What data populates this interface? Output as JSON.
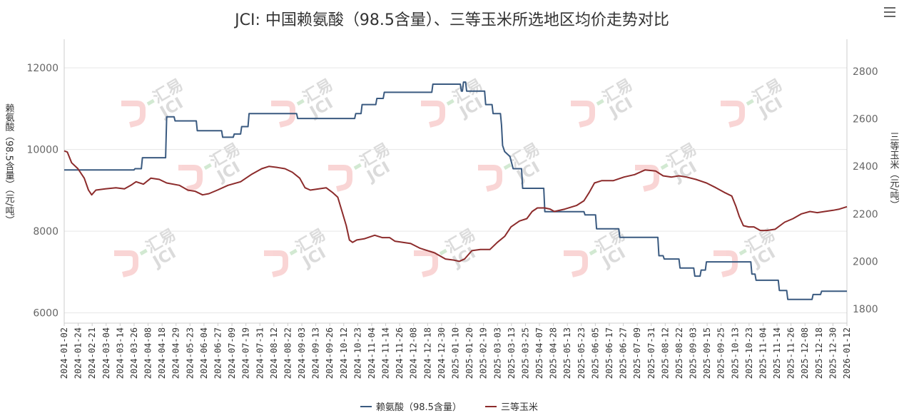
{
  "page": {
    "title": "JCI: 中国赖氨酸（98.5含量）、三等玉米所选地区均价走势对比",
    "watermark_text": "汇易",
    "watermark_text2": "JCI"
  },
  "chart_data": {
    "type": "line",
    "title": "JCI: 中国赖氨酸（98.5含量）、三等玉米所选地区均价走势对比",
    "ylabel_left": "赖氨酸（98.5含量）（元/吨）",
    "ylabel_right": "三等玉米（元/吨）",
    "ylim_left": [
      5750,
      12700
    ],
    "ylim_right": [
      1740,
      2935
    ],
    "yticks_left": [
      6000,
      8000,
      10000,
      12000
    ],
    "yticks_right": [
      1800,
      2000,
      2200,
      2400,
      2600,
      2800
    ],
    "xlim": [
      "2024-01-02",
      "2026-01-12"
    ],
    "grid": true,
    "legend_position": "bottom-center",
    "x_tick_labels": [
      "2024-01-02",
      "2024-01-24",
      "2024-02-21",
      "2024-03-04",
      "2024-03-14",
      "2024-03-26",
      "2024-04-08",
      "2024-04-18",
      "2024-04-29",
      "2024-05-23",
      "2024-06-04",
      "2024-06-27",
      "2024-07-09",
      "2024-07-19",
      "2024-07-31",
      "2024-08-12",
      "2024-08-22",
      "2024-09-03",
      "2024-09-13",
      "2024-09-26",
      "2024-10-12",
      "2024-10-23",
      "2024-11-04",
      "2024-11-14",
      "2024-11-26",
      "2024-12-08",
      "2024-12-18",
      "2024-12-30",
      "2025-01-10",
      "2025-01-20",
      "2025-02-19",
      "2025-03-03",
      "2025-03-13",
      "2025-03-25",
      "2025-04-07",
      "2025-04-28",
      "2025-05-13",
      "2025-05-23",
      "2025-06-05",
      "2025-06-17",
      "2025-06-27",
      "2025-07-09",
      "2025-07-31",
      "2025-08-12",
      "2025-08-22",
      "2025-09-03",
      "2025-09-15",
      "2025-09-25",
      "2025-10-13",
      "2025-10-23",
      "2025-11-04",
      "2025-11-14",
      "2025-11-26",
      "2025-12-08",
      "2025-12-18",
      "2025-12-30",
      "2026-01-12"
    ],
    "series": [
      {
        "name": "赖氨酸（98.5含量）",
        "axis": "left",
        "color": "#3a5a80",
        "step": true,
        "points": [
          [
            "2024-01-02",
            9500
          ],
          [
            "2024-03-08",
            9500
          ],
          [
            "2024-03-09",
            9530
          ],
          [
            "2024-03-15",
            9530
          ],
          [
            "2024-03-16",
            9800
          ],
          [
            "2024-04-07",
            9800
          ],
          [
            "2024-04-08",
            10800
          ],
          [
            "2024-04-15",
            10800
          ],
          [
            "2024-04-16",
            10700
          ],
          [
            "2024-05-06",
            10700
          ],
          [
            "2024-05-07",
            10460
          ],
          [
            "2024-05-30",
            10460
          ],
          [
            "2024-05-31",
            10300
          ],
          [
            "2024-06-10",
            10300
          ],
          [
            "2024-06-11",
            10380
          ],
          [
            "2024-06-17",
            10380
          ],
          [
            "2024-06-18",
            10560
          ],
          [
            "2024-06-24",
            10560
          ],
          [
            "2024-06-25",
            10880
          ],
          [
            "2024-08-09",
            10880
          ],
          [
            "2024-08-10",
            10760
          ],
          [
            "2024-10-03",
            10760
          ],
          [
            "2024-10-04",
            10880
          ],
          [
            "2024-10-09",
            10880
          ],
          [
            "2024-10-10",
            11100
          ],
          [
            "2024-10-23",
            11100
          ],
          [
            "2024-10-24",
            11250
          ],
          [
            "2024-10-30",
            11250
          ],
          [
            "2024-10-31",
            11400
          ],
          [
            "2024-12-15",
            11400
          ],
          [
            "2024-12-16",
            11600
          ],
          [
            "2025-01-11",
            11600
          ],
          [
            "2025-01-12",
            11430
          ],
          [
            "2025-01-13",
            11430
          ],
          [
            "2025-01-14",
            11650
          ],
          [
            "2025-01-16",
            11650
          ],
          [
            "2025-01-17",
            11430
          ],
          [
            "2025-02-03",
            11430
          ],
          [
            "2025-02-04",
            11100
          ],
          [
            "2025-02-10",
            11100
          ],
          [
            "2025-02-11",
            10880
          ],
          [
            "2025-02-18",
            10880
          ],
          [
            "2025-02-19",
            10600
          ],
          [
            "2025-02-20",
            10100
          ],
          [
            "2025-02-22",
            9950
          ],
          [
            "2025-02-27",
            9830
          ],
          [
            "2025-03-02",
            9530
          ],
          [
            "2025-03-10",
            9530
          ],
          [
            "2025-03-11",
            9050
          ],
          [
            "2025-03-31",
            9050
          ],
          [
            "2025-04-01",
            8480
          ],
          [
            "2025-05-08",
            8480
          ],
          [
            "2025-05-09",
            8400
          ],
          [
            "2025-05-19",
            8400
          ],
          [
            "2025-05-20",
            8060
          ],
          [
            "2025-06-10",
            8060
          ],
          [
            "2025-06-11",
            7850
          ],
          [
            "2025-07-17",
            7850
          ],
          [
            "2025-07-18",
            7400
          ],
          [
            "2025-07-22",
            7400
          ],
          [
            "2025-07-23",
            7320
          ],
          [
            "2025-08-06",
            7320
          ],
          [
            "2025-08-07",
            7100
          ],
          [
            "2025-08-20",
            7100
          ],
          [
            "2025-08-21",
            6900
          ],
          [
            "2025-08-26",
            6900
          ],
          [
            "2025-08-27",
            7050
          ],
          [
            "2025-08-31",
            7050
          ],
          [
            "2025-09-01",
            7250
          ],
          [
            "2025-10-13",
            7250
          ],
          [
            "2025-10-14",
            6950
          ],
          [
            "2025-10-17",
            6950
          ],
          [
            "2025-10-18",
            6800
          ],
          [
            "2025-11-08",
            6800
          ],
          [
            "2025-11-09",
            6550
          ],
          [
            "2025-11-16",
            6550
          ],
          [
            "2025-11-17",
            6330
          ],
          [
            "2025-12-10",
            6330
          ],
          [
            "2025-12-11",
            6450
          ],
          [
            "2025-12-18",
            6450
          ],
          [
            "2025-12-19",
            6530
          ],
          [
            "2026-01-12",
            6530
          ]
        ]
      },
      {
        "name": "三等玉米",
        "axis": "right",
        "color": "#8c2b2b",
        "step": false,
        "points": [
          [
            "2024-01-02",
            2465
          ],
          [
            "2024-01-05",
            2460
          ],
          [
            "2024-01-09",
            2415
          ],
          [
            "2024-01-15",
            2390
          ],
          [
            "2024-01-21",
            2350
          ],
          [
            "2024-01-25",
            2300
          ],
          [
            "2024-01-28",
            2280
          ],
          [
            "2024-02-01",
            2300
          ],
          [
            "2024-02-10",
            2305
          ],
          [
            "2024-02-20",
            2310
          ],
          [
            "2024-02-28",
            2305
          ],
          [
            "2024-03-05",
            2320
          ],
          [
            "2024-03-10",
            2335
          ],
          [
            "2024-03-17",
            2325
          ],
          [
            "2024-03-24",
            2350
          ],
          [
            "2024-04-01",
            2345
          ],
          [
            "2024-04-08",
            2330
          ],
          [
            "2024-04-20",
            2320
          ],
          [
            "2024-04-28",
            2300
          ],
          [
            "2024-05-05",
            2295
          ],
          [
            "2024-05-12",
            2280
          ],
          [
            "2024-05-18",
            2285
          ],
          [
            "2024-05-26",
            2300
          ],
          [
            "2024-06-05",
            2320
          ],
          [
            "2024-06-17",
            2335
          ],
          [
            "2024-06-27",
            2365
          ],
          [
            "2024-07-07",
            2390
          ],
          [
            "2024-07-14",
            2400
          ],
          [
            "2024-07-22",
            2395
          ],
          [
            "2024-07-29",
            2390
          ],
          [
            "2024-08-05",
            2375
          ],
          [
            "2024-08-12",
            2350
          ],
          [
            "2024-08-17",
            2310
          ],
          [
            "2024-08-22",
            2300
          ],
          [
            "2024-08-30",
            2305
          ],
          [
            "2024-09-06",
            2310
          ],
          [
            "2024-09-12",
            2290
          ],
          [
            "2024-09-17",
            2270
          ],
          [
            "2024-09-21",
            2210
          ],
          [
            "2024-09-25",
            2150
          ],
          [
            "2024-09-28",
            2090
          ],
          [
            "2024-10-01",
            2080
          ],
          [
            "2024-10-05",
            2090
          ],
          [
            "2024-10-12",
            2095
          ],
          [
            "2024-10-22",
            2110
          ],
          [
            "2024-10-29",
            2100
          ],
          [
            "2024-11-05",
            2100
          ],
          [
            "2024-11-10",
            2085
          ],
          [
            "2024-11-25",
            2075
          ],
          [
            "2024-12-04",
            2055
          ],
          [
            "2024-12-18",
            2035
          ],
          [
            "2024-12-28",
            2010
          ],
          [
            "2025-01-05",
            2005
          ],
          [
            "2025-01-10",
            2000
          ],
          [
            "2025-01-15",
            2010
          ],
          [
            "2025-01-22",
            2045
          ],
          [
            "2025-01-30",
            2050
          ],
          [
            "2025-02-08",
            2050
          ],
          [
            "2025-02-15",
            2080
          ],
          [
            "2025-02-22",
            2105
          ],
          [
            "2025-02-28",
            2145
          ],
          [
            "2025-03-08",
            2170
          ],
          [
            "2025-03-15",
            2180
          ],
          [
            "2025-03-20",
            2210
          ],
          [
            "2025-03-25",
            2225
          ],
          [
            "2025-04-01",
            2225
          ],
          [
            "2025-04-06",
            2220
          ],
          [
            "2025-04-10",
            2210
          ],
          [
            "2025-04-20",
            2220
          ],
          [
            "2025-05-01",
            2235
          ],
          [
            "2025-05-08",
            2255
          ],
          [
            "2025-05-13",
            2290
          ],
          [
            "2025-05-18",
            2330
          ],
          [
            "2025-05-25",
            2340
          ],
          [
            "2025-06-05",
            2340
          ],
          [
            "2025-06-15",
            2355
          ],
          [
            "2025-06-25",
            2365
          ],
          [
            "2025-07-05",
            2385
          ],
          [
            "2025-07-15",
            2380
          ],
          [
            "2025-07-22",
            2360
          ],
          [
            "2025-07-30",
            2355
          ],
          [
            "2025-08-06",
            2360
          ],
          [
            "2025-08-13",
            2355
          ],
          [
            "2025-08-22",
            2345
          ],
          [
            "2025-09-01",
            2330
          ],
          [
            "2025-09-10",
            2310
          ],
          [
            "2025-09-18",
            2290
          ],
          [
            "2025-09-25",
            2275
          ],
          [
            "2025-09-29",
            2230
          ],
          [
            "2025-10-02",
            2190
          ],
          [
            "2025-10-06",
            2150
          ],
          [
            "2025-10-11",
            2145
          ],
          [
            "2025-10-16",
            2145
          ],
          [
            "2025-10-22",
            2130
          ],
          [
            "2025-10-28",
            2130
          ],
          [
            "2025-11-05",
            2135
          ],
          [
            "2025-11-14",
            2165
          ],
          [
            "2025-11-22",
            2180
          ],
          [
            "2025-11-30",
            2200
          ],
          [
            "2025-12-08",
            2210
          ],
          [
            "2025-12-15",
            2205
          ],
          [
            "2025-12-22",
            2210
          ],
          [
            "2025-12-30",
            2215
          ],
          [
            "2026-01-05",
            2220
          ],
          [
            "2026-01-12",
            2230
          ]
        ]
      }
    ]
  }
}
